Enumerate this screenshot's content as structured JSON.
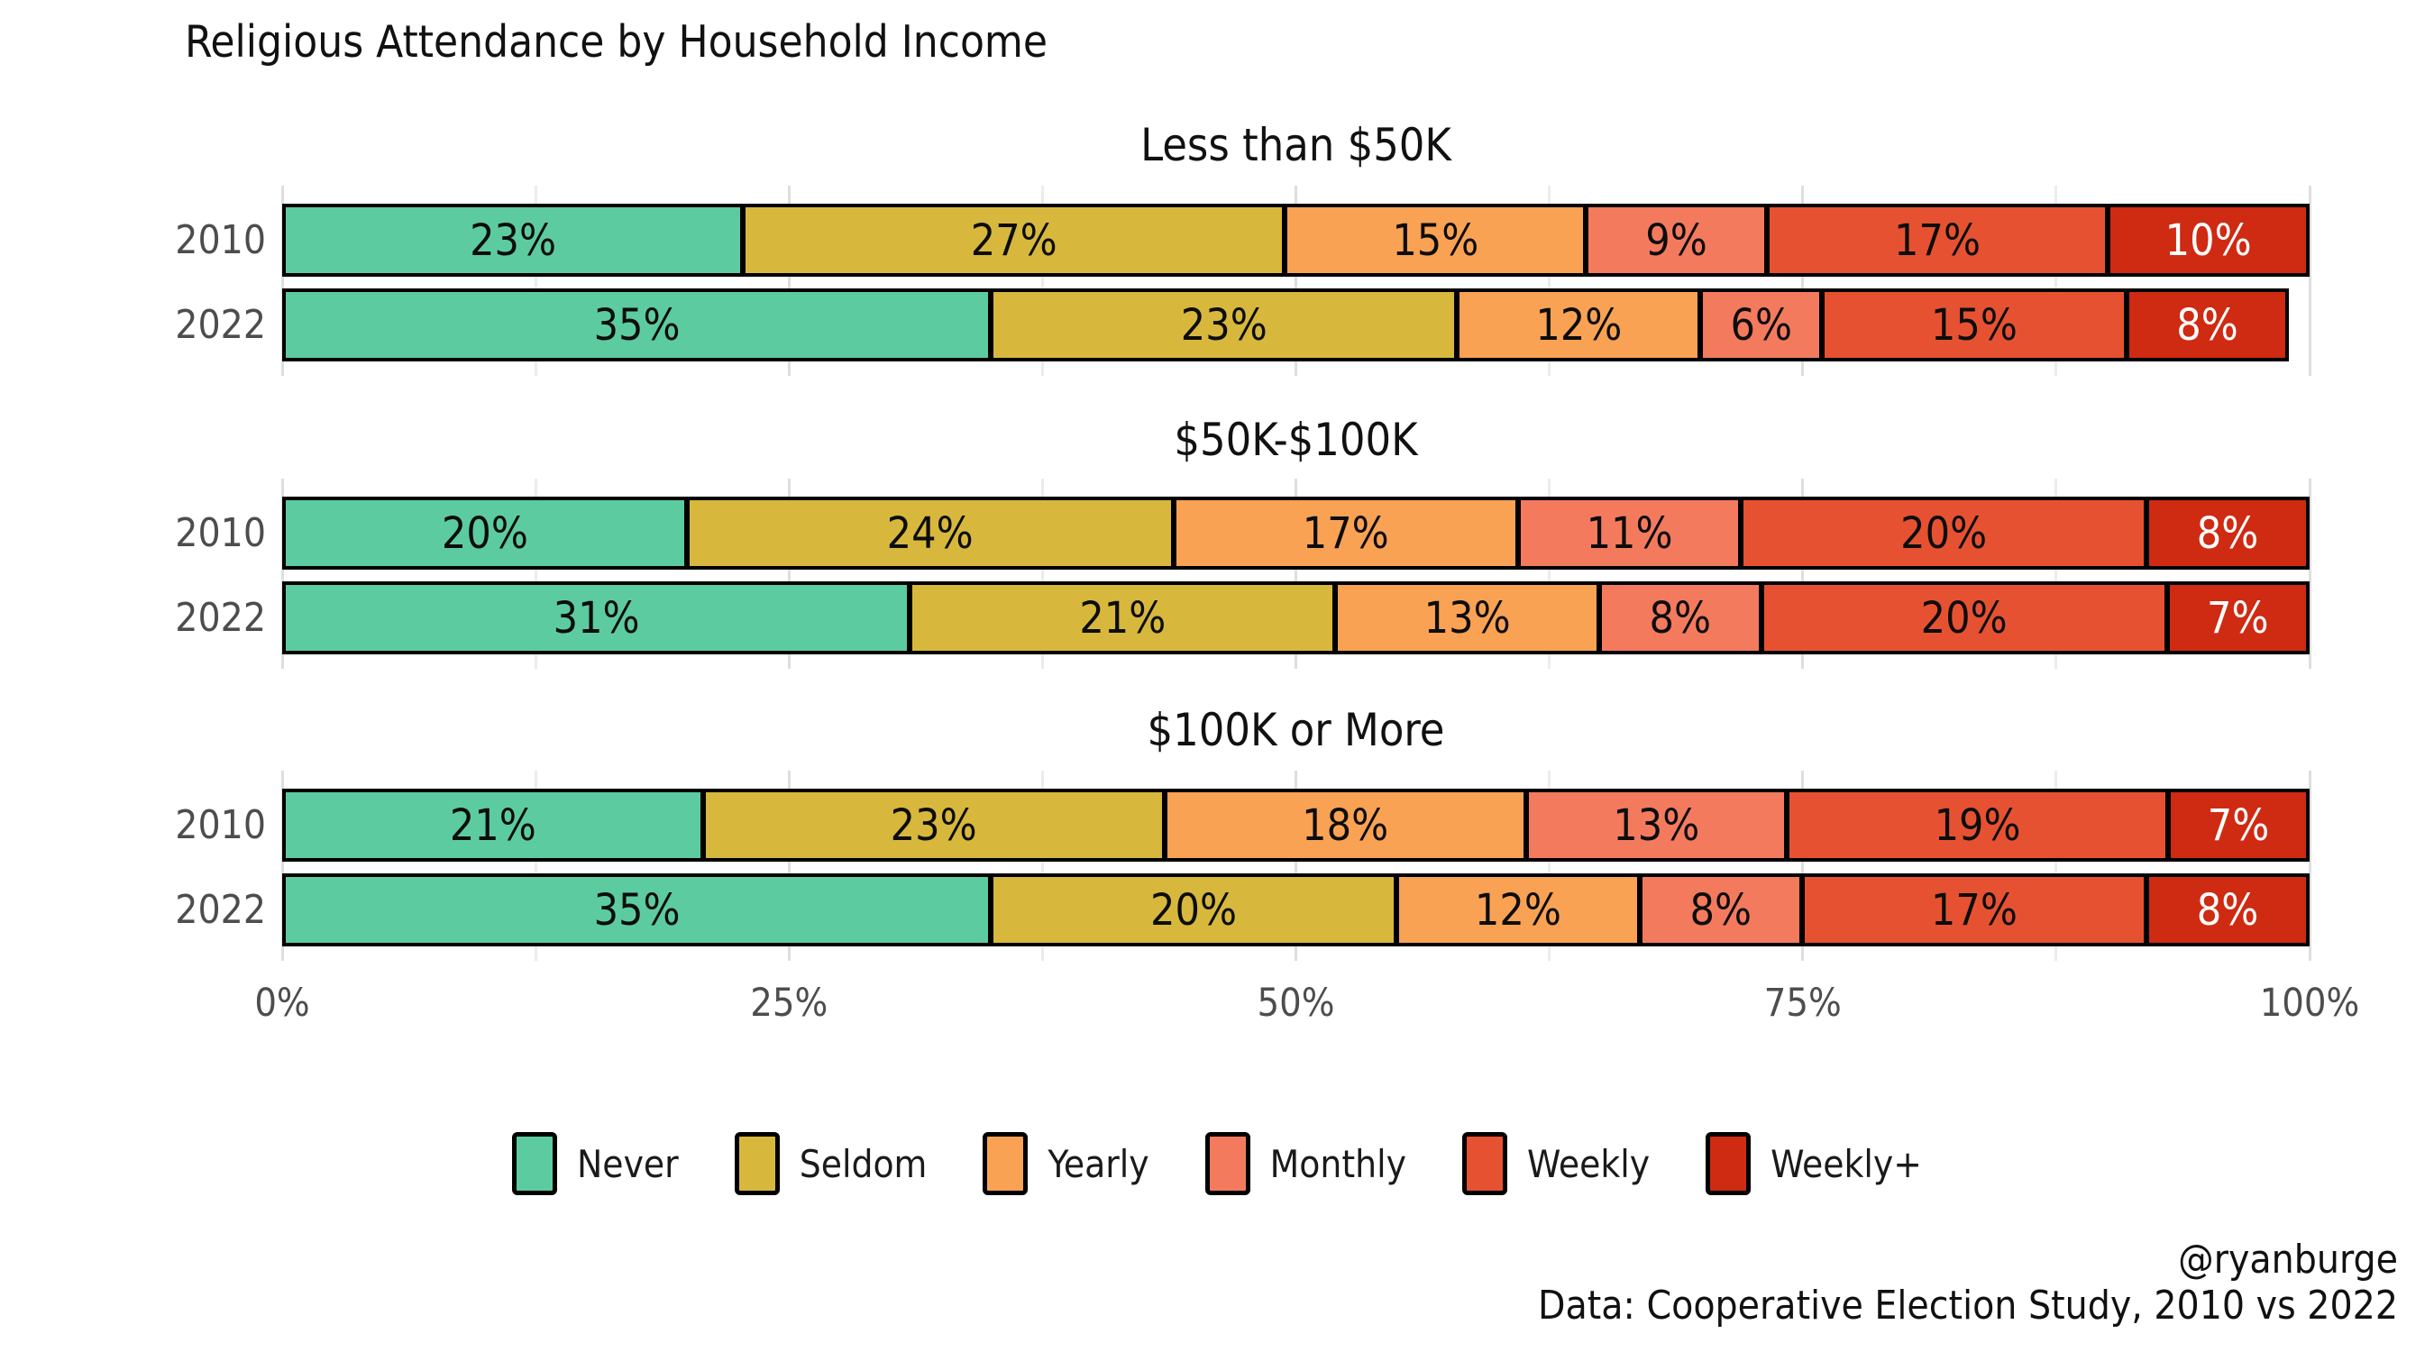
{
  "title": "Religious Attendance by Household Income",
  "credits": {
    "handle": "@ryanburge",
    "source": "Data: Cooperative Election Study, 2010 vs 2022"
  },
  "axis": {
    "ticks": [
      {
        "label": "0%",
        "value": 0
      },
      {
        "label": "25%",
        "value": 25
      },
      {
        "label": "50%",
        "value": 50
      },
      {
        "label": "75%",
        "value": 75
      },
      {
        "label": "100%",
        "value": 100
      }
    ],
    "minor_gridlines_every": 12.5
  },
  "chart_data": {
    "type": "bar",
    "stacked": true,
    "orientation": "horizontal",
    "title": "Religious Attendance by Household Income",
    "categories": [
      "Never",
      "Seldom",
      "Yearly",
      "Monthly",
      "Weekly",
      "Weekly+"
    ],
    "colors": [
      "#5ccca0",
      "#d7b83d",
      "#f9a254",
      "#f47a5e",
      "#e65231",
      "#cf2a12"
    ],
    "value_suffix": "%",
    "xlim": [
      0,
      100
    ],
    "last_segment_label_color": "#ffffff",
    "panels": [
      {
        "title": "Less than $50K",
        "rows": [
          {
            "year": "2010",
            "values": [
              23,
              27,
              15,
              9,
              17,
              10
            ]
          },
          {
            "year": "2022",
            "values": [
              35,
              23,
              12,
              6,
              15,
              8
            ]
          }
        ]
      },
      {
        "title": "$50K-$100K",
        "rows": [
          {
            "year": "2010",
            "values": [
              20,
              24,
              17,
              11,
              20,
              8
            ]
          },
          {
            "year": "2022",
            "values": [
              31,
              21,
              13,
              8,
              20,
              7
            ]
          }
        ]
      },
      {
        "title": "$100K or More",
        "rows": [
          {
            "year": "2010",
            "values": [
              21,
              23,
              18,
              13,
              19,
              7
            ]
          },
          {
            "year": "2022",
            "values": [
              35,
              20,
              12,
              8,
              17,
              8
            ]
          }
        ]
      }
    ]
  },
  "legend": [
    {
      "label": "Never",
      "color": "#5ccca0"
    },
    {
      "label": "Seldom",
      "color": "#d7b83d"
    },
    {
      "label": "Yearly",
      "color": "#f9a254"
    },
    {
      "label": "Monthly",
      "color": "#f47a5e"
    },
    {
      "label": "Weekly",
      "color": "#e65231"
    },
    {
      "label": "Weekly+",
      "color": "#cf2a12"
    }
  ]
}
